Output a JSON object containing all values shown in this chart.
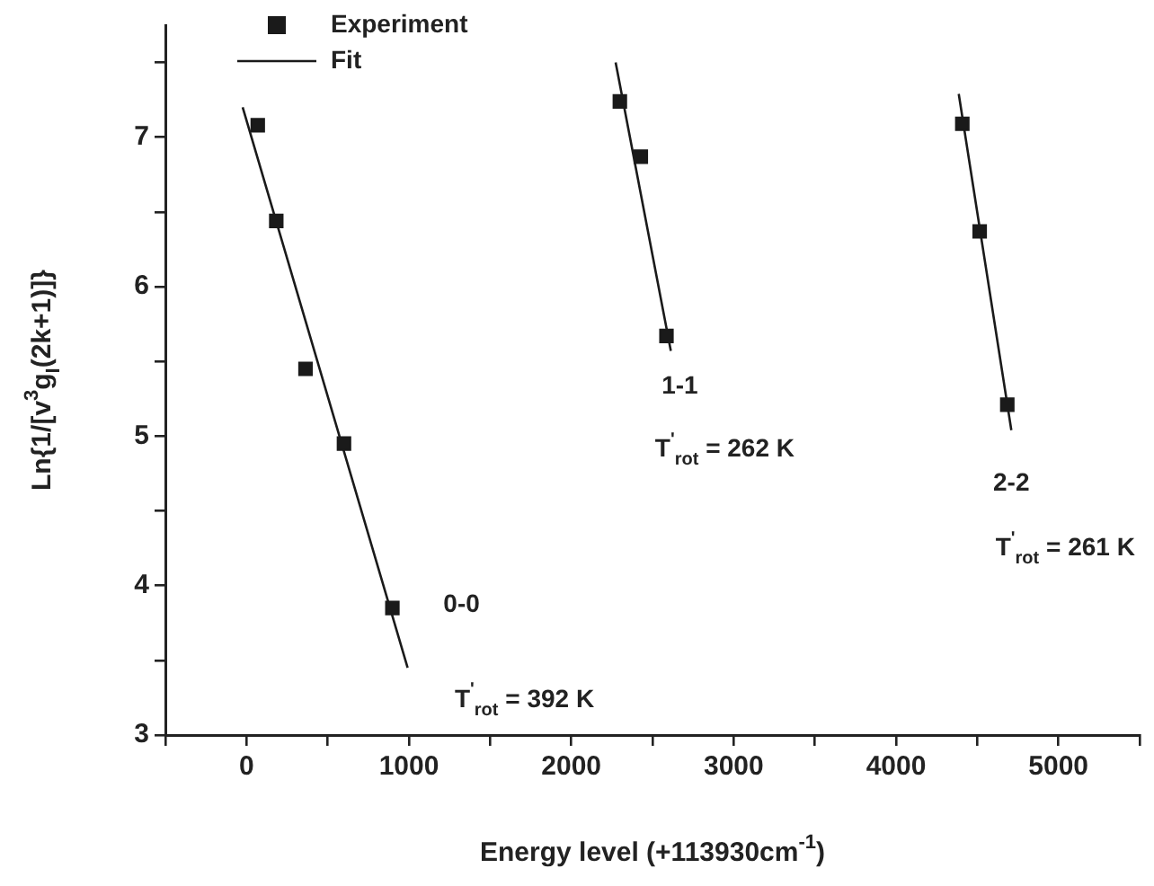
{
  "chart_data": {
    "type": "scatter",
    "xlabel": "Energy level (+113930cm$^{-1}$)",
    "ylabel": "Ln{1/[v$^{3}$g$_{I}$(2k+1)]}",
    "xlim": [
      -500,
      5500
    ],
    "ylim": [
      3,
      7.75
    ],
    "xticks": [
      {
        "value": -500,
        "label": null
      },
      0,
      {
        "value": 500,
        "label": null
      },
      1000,
      {
        "value": 1500,
        "label": null
      },
      2000,
      {
        "value": 2500,
        "label": null
      },
      3000,
      {
        "value": 3500,
        "label": null
      },
      4000,
      {
        "value": 4500,
        "label": null
      },
      5000,
      {
        "value": 5500,
        "label": null
      }
    ],
    "yticks": [
      3,
      {
        "value": 3.5,
        "label": null
      },
      4,
      {
        "value": 4.5,
        "label": null
      },
      5,
      {
        "value": 5.5,
        "label": null
      },
      6,
      {
        "value": 6.5,
        "label": null
      },
      7,
      {
        "value": 7.5,
        "label": null
      }
    ],
    "grid": false,
    "legend": "top left",
    "series": [
      {
        "name": "Experiment",
        "marker": "square",
        "color": "#1a1a1a",
        "x": [
          69,
          183,
          363,
          600,
          898,
          2299,
          2428,
          2586,
          4408,
          4515,
          4685
        ],
        "values": [
          7.08,
          6.44,
          5.45,
          4.95,
          3.85,
          7.24,
          6.87,
          5.67,
          7.09,
          6.37,
          5.21
        ]
      },
      {
        "name": "Fit",
        "type": "line",
        "marker": "none",
        "line_style": "solid",
        "color": "#1a1a1a",
        "x": [
          -24,
          992,
          1600,
          2273,
          2613,
          3500,
          4386,
          4710
        ],
        "values": [
          7.2,
          3.45,
          null,
          7.5,
          5.57,
          null,
          7.29,
          5.04
        ]
      }
    ],
    "annotations": [
      "0-0",
      "T$^{'}$$_{rot}$ = 392 K",
      "1-1",
      "T$^{'}$$_{rot}$ = 262 K",
      "2-2",
      "T$^{'}$$_{rot}$ = 261 K"
    ]
  }
}
